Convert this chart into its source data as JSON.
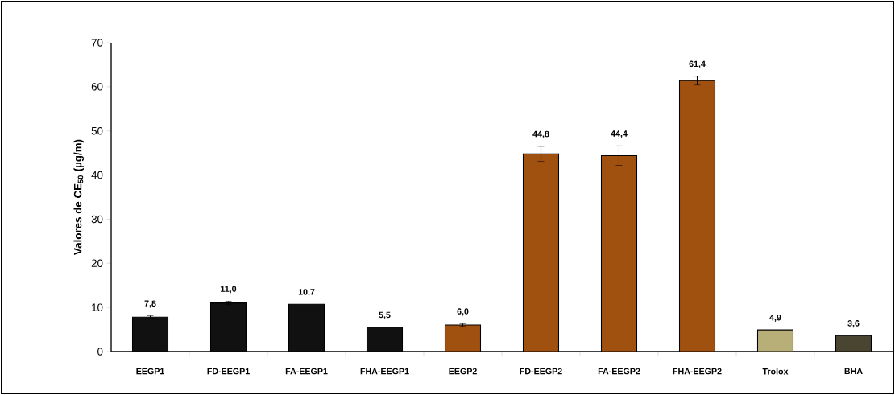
{
  "chart_data": {
    "type": "bar",
    "ylabel": "Valores de CE$_{50}$ (µg/m)",
    "categories": [
      "EEGP1",
      "FD-EEGP1",
      "FA-EEGP1",
      "FHA-EEGP1",
      "EEGP2",
      "FD-EEGP2",
      "FA-EEGP2",
      "FHA-EEGP2",
      "Trolox",
      "BHA"
    ],
    "values": [
      7.8,
      11.0,
      10.7,
      5.5,
      6.0,
      44.8,
      44.4,
      61.4,
      4.9,
      3.6
    ],
    "errors": [
      0.3,
      0.4,
      null,
      null,
      0.3,
      1.7,
      2.2,
      1.0,
      null,
      null
    ],
    "value_labels": [
      "7,8",
      "11,0",
      "10,7",
      "5,5",
      "6,0",
      "44,8",
      "44,4",
      "61,4",
      "4,9",
      "3,6"
    ],
    "colors": [
      "#111111",
      "#111111",
      "#111111",
      "#111111",
      "#a0500f",
      "#a0500f",
      "#a0500f",
      "#a0500f",
      "#b8ae78",
      "#4a4530"
    ],
    "ylim": [
      0,
      70
    ],
    "yticks": [
      0,
      10,
      20,
      30,
      40,
      50,
      60,
      70
    ],
    "grid": false
  }
}
